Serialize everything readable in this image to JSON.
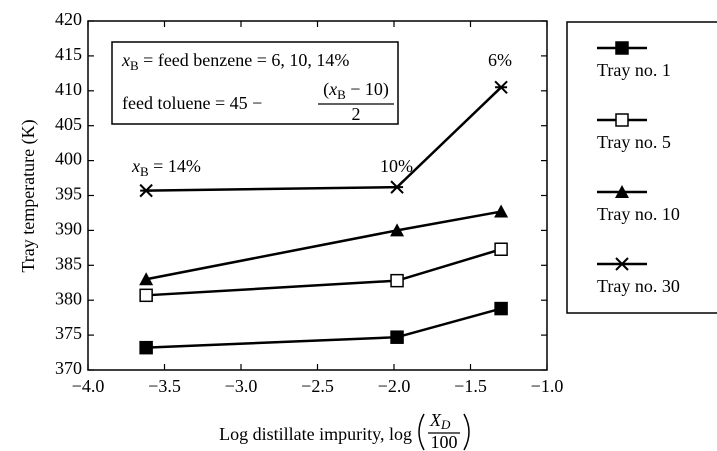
{
  "chart_data": {
    "type": "line",
    "x_label": {
      "prefix": "Log distillate impurity, log",
      "numerator": "X",
      "numerator_sub": "D",
      "denominator": "100"
    },
    "y_label": "Tray temperature (K)",
    "x": [
      -3.62,
      -1.98,
      -1.3
    ],
    "xlim": [
      -4,
      -1
    ],
    "xticks": [
      {
        "value": -4,
        "label": "−4.0"
      },
      {
        "value": -3.5,
        "label": "−3.5"
      },
      {
        "value": -3,
        "label": "−3.0"
      },
      {
        "value": -2.5,
        "label": "−2.5"
      },
      {
        "value": -2,
        "label": "−2.0"
      },
      {
        "value": -1.5,
        "label": "−1.5"
      },
      {
        "value": -1,
        "label": "−1.0"
      }
    ],
    "ylim": [
      370,
      420
    ],
    "yticks": [
      370,
      375,
      380,
      385,
      390,
      395,
      400,
      405,
      410,
      415,
      420
    ],
    "legend": "right-outside",
    "series": [
      {
        "name": "Tray no. 1",
        "color": "#000000",
        "marker": "square-filled",
        "values": [
          373.2,
          374.7,
          378.8
        ]
      },
      {
        "name": "Tray no. 5",
        "color": "#000000",
        "marker": "square-open",
        "values": [
          380.7,
          382.8,
          387.3
        ]
      },
      {
        "name": "Tray no. 10",
        "color": "#000000",
        "marker": "triangle-filled",
        "values": [
          383.0,
          390.0,
          392.7
        ]
      },
      {
        "name": "Tray no. 30",
        "color": "#000000",
        "marker": "star",
        "values": [
          395.7,
          396.2,
          410.5
        ]
      }
    ],
    "box": {
      "line1": {
        "var": "x",
        "sub": "B",
        "rest": " = feed benzene = 6, 10, 14%"
      },
      "line2": {
        "lead": "feed toluene = 45 −",
        "num_open": "(",
        "num_var": "x",
        "num_sub": "B",
        "num_rest": " − 10)",
        "denominator": "2"
      }
    },
    "annotations": {
      "a14": {
        "var": "x",
        "sub": "B",
        "rest": " = 14%"
      },
      "a10": "10%",
      "a6": "6%"
    }
  }
}
